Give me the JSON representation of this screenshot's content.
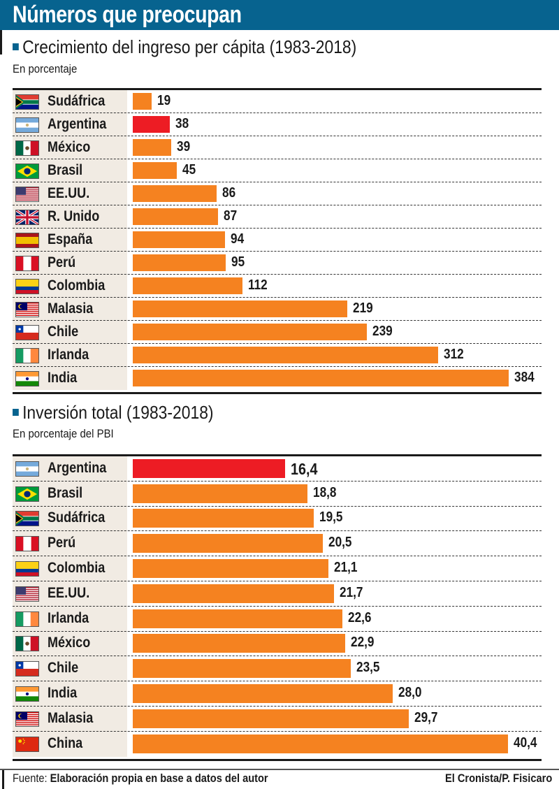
{
  "header": {
    "title": "Números que preocupan"
  },
  "colors": {
    "brand": "#07638f",
    "bar": "#f58220",
    "highlight": "#ed1c24",
    "label_bg": "#f1ebe3"
  },
  "footer": {
    "source_label": "Fuente:",
    "source_text": "Elaboración propia en base a datos del autor",
    "credit": "El Cronista/P. Fisicaro"
  },
  "chart_data": [
    {
      "type": "bar",
      "orientation": "horizontal",
      "title": "Crecimiento del ingreso per cápita (1983-2018)",
      "subtitle": "En porcentaje",
      "highlight": "Argentina",
      "categories": [
        "Sudáfrica",
        "Argentina",
        "México",
        "Brasil",
        "EE.UU.",
        "R. Unido",
        "España",
        "Perú",
        "Colombia",
        "Malasia",
        "Chile",
        "Irlanda",
        "India"
      ],
      "flags": [
        "za",
        "ar",
        "mx",
        "br",
        "us",
        "gb",
        "es",
        "pe",
        "co",
        "my",
        "cl",
        "ie",
        "in"
      ],
      "values": [
        19,
        38,
        39,
        45,
        86,
        87,
        94,
        95,
        112,
        219,
        239,
        312,
        384
      ],
      "labels": [
        "19",
        "38",
        "39",
        "45",
        "86",
        "87",
        "94",
        "95",
        "112",
        "219",
        "239",
        "312",
        "384"
      ],
      "xlim": [
        0,
        384
      ]
    },
    {
      "type": "bar",
      "orientation": "horizontal",
      "title": "Inversión total (1983-2018)",
      "subtitle": "En porcentaje del PBI",
      "highlight": "Argentina",
      "categories": [
        "Argentina",
        "Brasil",
        "Sudáfrica",
        "Perú",
        "Colombia",
        "EE.UU.",
        "Irlanda",
        "México",
        "Chile",
        "India",
        "Malasia",
        "China"
      ],
      "flags": [
        "ar",
        "br",
        "za",
        "pe",
        "co",
        "us",
        "ie",
        "mx",
        "cl",
        "in",
        "my",
        "cn"
      ],
      "values": [
        16.4,
        18.8,
        19.5,
        20.5,
        21.1,
        21.7,
        22.6,
        22.9,
        23.5,
        28.0,
        29.7,
        40.4
      ],
      "labels": [
        "16,4",
        "18,8",
        "19,5",
        "20,5",
        "21,1",
        "21,7",
        "22,6",
        "22,9",
        "23,5",
        "28,0",
        "29,7",
        "40,4"
      ],
      "xlim": [
        0,
        40.4
      ]
    }
  ]
}
